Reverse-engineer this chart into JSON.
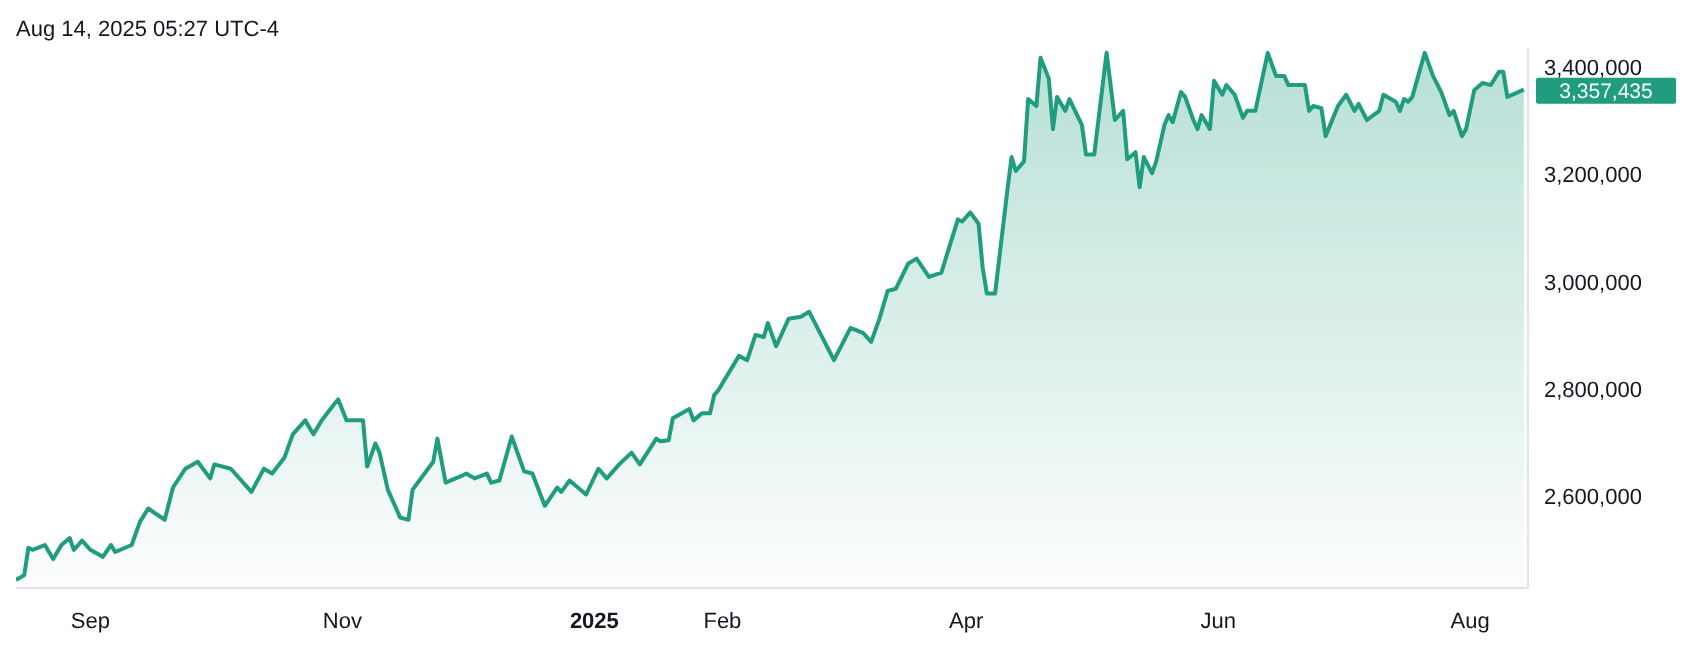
{
  "chart_data": {
    "type": "area",
    "title": "Aug 14, 2025 05:27 UTC-4",
    "x": [
      "2024-08-14",
      "2024-08-16",
      "2024-08-17",
      "2024-08-18",
      "2024-08-21",
      "2024-08-23",
      "2024-08-25",
      "2024-08-27",
      "2024-08-28",
      "2024-08-30",
      "2024-09-01",
      "2024-09-04",
      "2024-09-06",
      "2024-09-07",
      "2024-09-11",
      "2024-09-13",
      "2024-09-15",
      "2024-09-19",
      "2024-09-21",
      "2024-09-24",
      "2024-09-27",
      "2024-09-30",
      "2024-10-01",
      "2024-10-05",
      "2024-10-10",
      "2024-10-13",
      "2024-10-15",
      "2024-10-18",
      "2024-10-20",
      "2024-10-23",
      "2024-10-25",
      "2024-10-27",
      "2024-10-30",
      "2024-10-31",
      "2024-11-02",
      "2024-11-06",
      "2024-11-07",
      "2024-11-09",
      "2024-11-10",
      "2024-11-12",
      "2024-11-15",
      "2024-11-17",
      "2024-11-18",
      "2024-11-23",
      "2024-11-24",
      "2024-11-26",
      "2024-11-30",
      "2024-12-01",
      "2024-12-03",
      "2024-12-06",
      "2024-12-07",
      "2024-12-09",
      "2024-12-12",
      "2024-12-15",
      "2024-12-17",
      "2024-12-20",
      "2024-12-23",
      "2024-12-24",
      "2024-12-26",
      "2024-12-30",
      "2025-01-02",
      "2025-01-04",
      "2025-01-07",
      "2025-01-10",
      "2025-01-12",
      "2025-01-16",
      "2025-01-17",
      "2025-01-19",
      "2025-01-20",
      "2025-01-24",
      "2025-01-25",
      "2025-01-27",
      "2025-01-29",
      "2025-01-30",
      "2025-01-31",
      "2025-02-05",
      "2025-02-07",
      "2025-02-09",
      "2025-02-11",
      "2025-02-12",
      "2025-02-14",
      "2025-02-17",
      "2025-02-20",
      "2025-02-22",
      "2025-02-24",
      "2025-02-28",
      "2025-03-04",
      "2025-03-07",
      "2025-03-09",
      "2025-03-11",
      "2025-03-13",
      "2025-03-15",
      "2025-03-18",
      "2025-03-20",
      "2025-03-23",
      "2025-03-26",
      "2025-03-30",
      "2025-03-31",
      "2025-04-02",
      "2025-04-04",
      "2025-04-05",
      "2025-04-06",
      "2025-04-08",
      "2025-04-11",
      "2025-04-12",
      "2025-04-13",
      "2025-04-15",
      "2025-04-16",
      "2025-04-18",
      "2025-04-19",
      "2025-04-21",
      "2025-04-22",
      "2025-04-23",
      "2025-04-25",
      "2025-04-26",
      "2025-04-29",
      "2025-04-30",
      "2025-05-02",
      "2025-05-05",
      "2025-05-07",
      "2025-05-09",
      "2025-05-10",
      "2025-05-12",
      "2025-05-13",
      "2025-05-14",
      "2025-05-16",
      "2025-05-17",
      "2025-05-19",
      "2025-05-20",
      "2025-05-21",
      "2025-05-23",
      "2025-05-24",
      "2025-05-26",
      "2025-05-27",
      "2025-05-28",
      "2025-05-30",
      "2025-05-31",
      "2025-06-02",
      "2025-06-03",
      "2025-06-05",
      "2025-06-07",
      "2025-06-08",
      "2025-06-10",
      "2025-06-13",
      "2025-06-15",
      "2025-06-17",
      "2025-06-18",
      "2025-06-22",
      "2025-06-23",
      "2025-06-24",
      "2025-06-26",
      "2025-06-27",
      "2025-06-30",
      "2025-07-02",
      "2025-07-04",
      "2025-07-05",
      "2025-07-07",
      "2025-07-10",
      "2025-07-11",
      "2025-07-14",
      "2025-07-15",
      "2025-07-16",
      "2025-07-17",
      "2025-07-18",
      "2025-07-21",
      "2025-07-23",
      "2025-07-25",
      "2025-07-27",
      "2025-07-28",
      "2025-07-30",
      "2025-07-31",
      "2025-08-02",
      "2025-08-04",
      "2025-08-06",
      "2025-08-08",
      "2025-08-09",
      "2025-08-10",
      "2025-08-14"
    ],
    "series": [
      {
        "color": "#1f9d7e",
        "values": [
          2445000,
          2454000,
          2505000,
          2501000,
          2510000,
          2484000,
          2510000,
          2523000,
          2501000,
          2518000,
          2501000,
          2488000,
          2510000,
          2497000,
          2510000,
          2553000,
          2578000,
          2557000,
          2617000,
          2652000,
          2665000,
          2634000,
          2660000,
          2652000,
          2609000,
          2652000,
          2643000,
          2673000,
          2716000,
          2742000,
          2716000,
          2742000,
          2772000,
          2781000,
          2742000,
          2742000,
          2656000,
          2699000,
          2682000,
          2613000,
          2561000,
          2557000,
          2613000,
          2665000,
          2708000,
          2626000,
          2639000,
          2643000,
          2634000,
          2643000,
          2626000,
          2630000,
          2712000,
          2647000,
          2643000,
          2583000,
          2617000,
          2609000,
          2630000,
          2604000,
          2652000,
          2634000,
          2660000,
          2682000,
          2660000,
          2708000,
          2703000,
          2705000,
          2746000,
          2763000,
          2742000,
          2755000,
          2755000,
          2789000,
          2798000,
          2862000,
          2854000,
          2901000,
          2897000,
          2923000,
          2880000,
          2931000,
          2935000,
          2944000,
          2914000,
          2854000,
          2914000,
          2905000,
          2888000,
          2931000,
          2983000,
          2987000,
          3034000,
          3043000,
          3009000,
          3017000,
          3116000,
          3112000,
          3129000,
          3108000,
          3026000,
          2978000,
          2978000,
          3172000,
          3232000,
          3206000,
          3224000,
          3340000,
          3327000,
          3417000,
          3378000,
          3284000,
          3344000,
          3318000,
          3340000,
          3292000,
          3237000,
          3237000,
          3426000,
          3301000,
          3318000,
          3228000,
          3241000,
          3176000,
          3232000,
          3202000,
          3224000,
          3292000,
          3310000,
          3297000,
          3353000,
          3344000,
          3301000,
          3284000,
          3310000,
          3284000,
          3374000,
          3348000,
          3366000,
          3348000,
          3305000,
          3318000,
          3318000,
          3426000,
          3383000,
          3383000,
          3366000,
          3366000,
          3318000,
          3327000,
          3323000,
          3271000,
          3327000,
          3348000,
          3318000,
          3331000,
          3301000,
          3318000,
          3348000,
          3335000,
          3318000,
          3340000,
          3335000,
          3344000,
          3426000,
          3383000,
          3353000,
          3310000,
          3318000,
          3271000,
          3284000,
          3357000,
          3370000,
          3366000,
          3391000,
          3391000,
          3344000,
          3357435
        ]
      }
    ],
    "xlim": [
      "2024-08-14",
      "2025-08-15"
    ],
    "xticks": [
      {
        "value": "2024-09-01",
        "label": "Sep"
      },
      {
        "value": "2024-11-01",
        "label": "Nov"
      },
      {
        "value": "2025-01-01",
        "label": "2025"
      },
      {
        "value": "2025-02-01",
        "label": "Feb"
      },
      {
        "value": "2025-04-01",
        "label": "Apr"
      },
      {
        "value": "2025-06-01",
        "label": "Jun"
      },
      {
        "value": "2025-08-01",
        "label": "Aug"
      }
    ],
    "ylim": [
      2430000,
      3435000
    ],
    "yticks": [
      {
        "value": 2600000,
        "label": "2,600,000"
      },
      {
        "value": 2800000,
        "label": "2,800,000"
      },
      {
        "value": 3000000,
        "label": "3,000,000"
      },
      {
        "value": 3200000,
        "label": "3,200,000"
      },
      {
        "value": 3400000,
        "label": "3,400,000"
      }
    ],
    "annotations": [
      {
        "text": "3,357,435",
        "x": "2025-08-14",
        "y": 3357435
      }
    ],
    "grid": false,
    "legend": false,
    "marker": "none",
    "line_style": "solid"
  }
}
